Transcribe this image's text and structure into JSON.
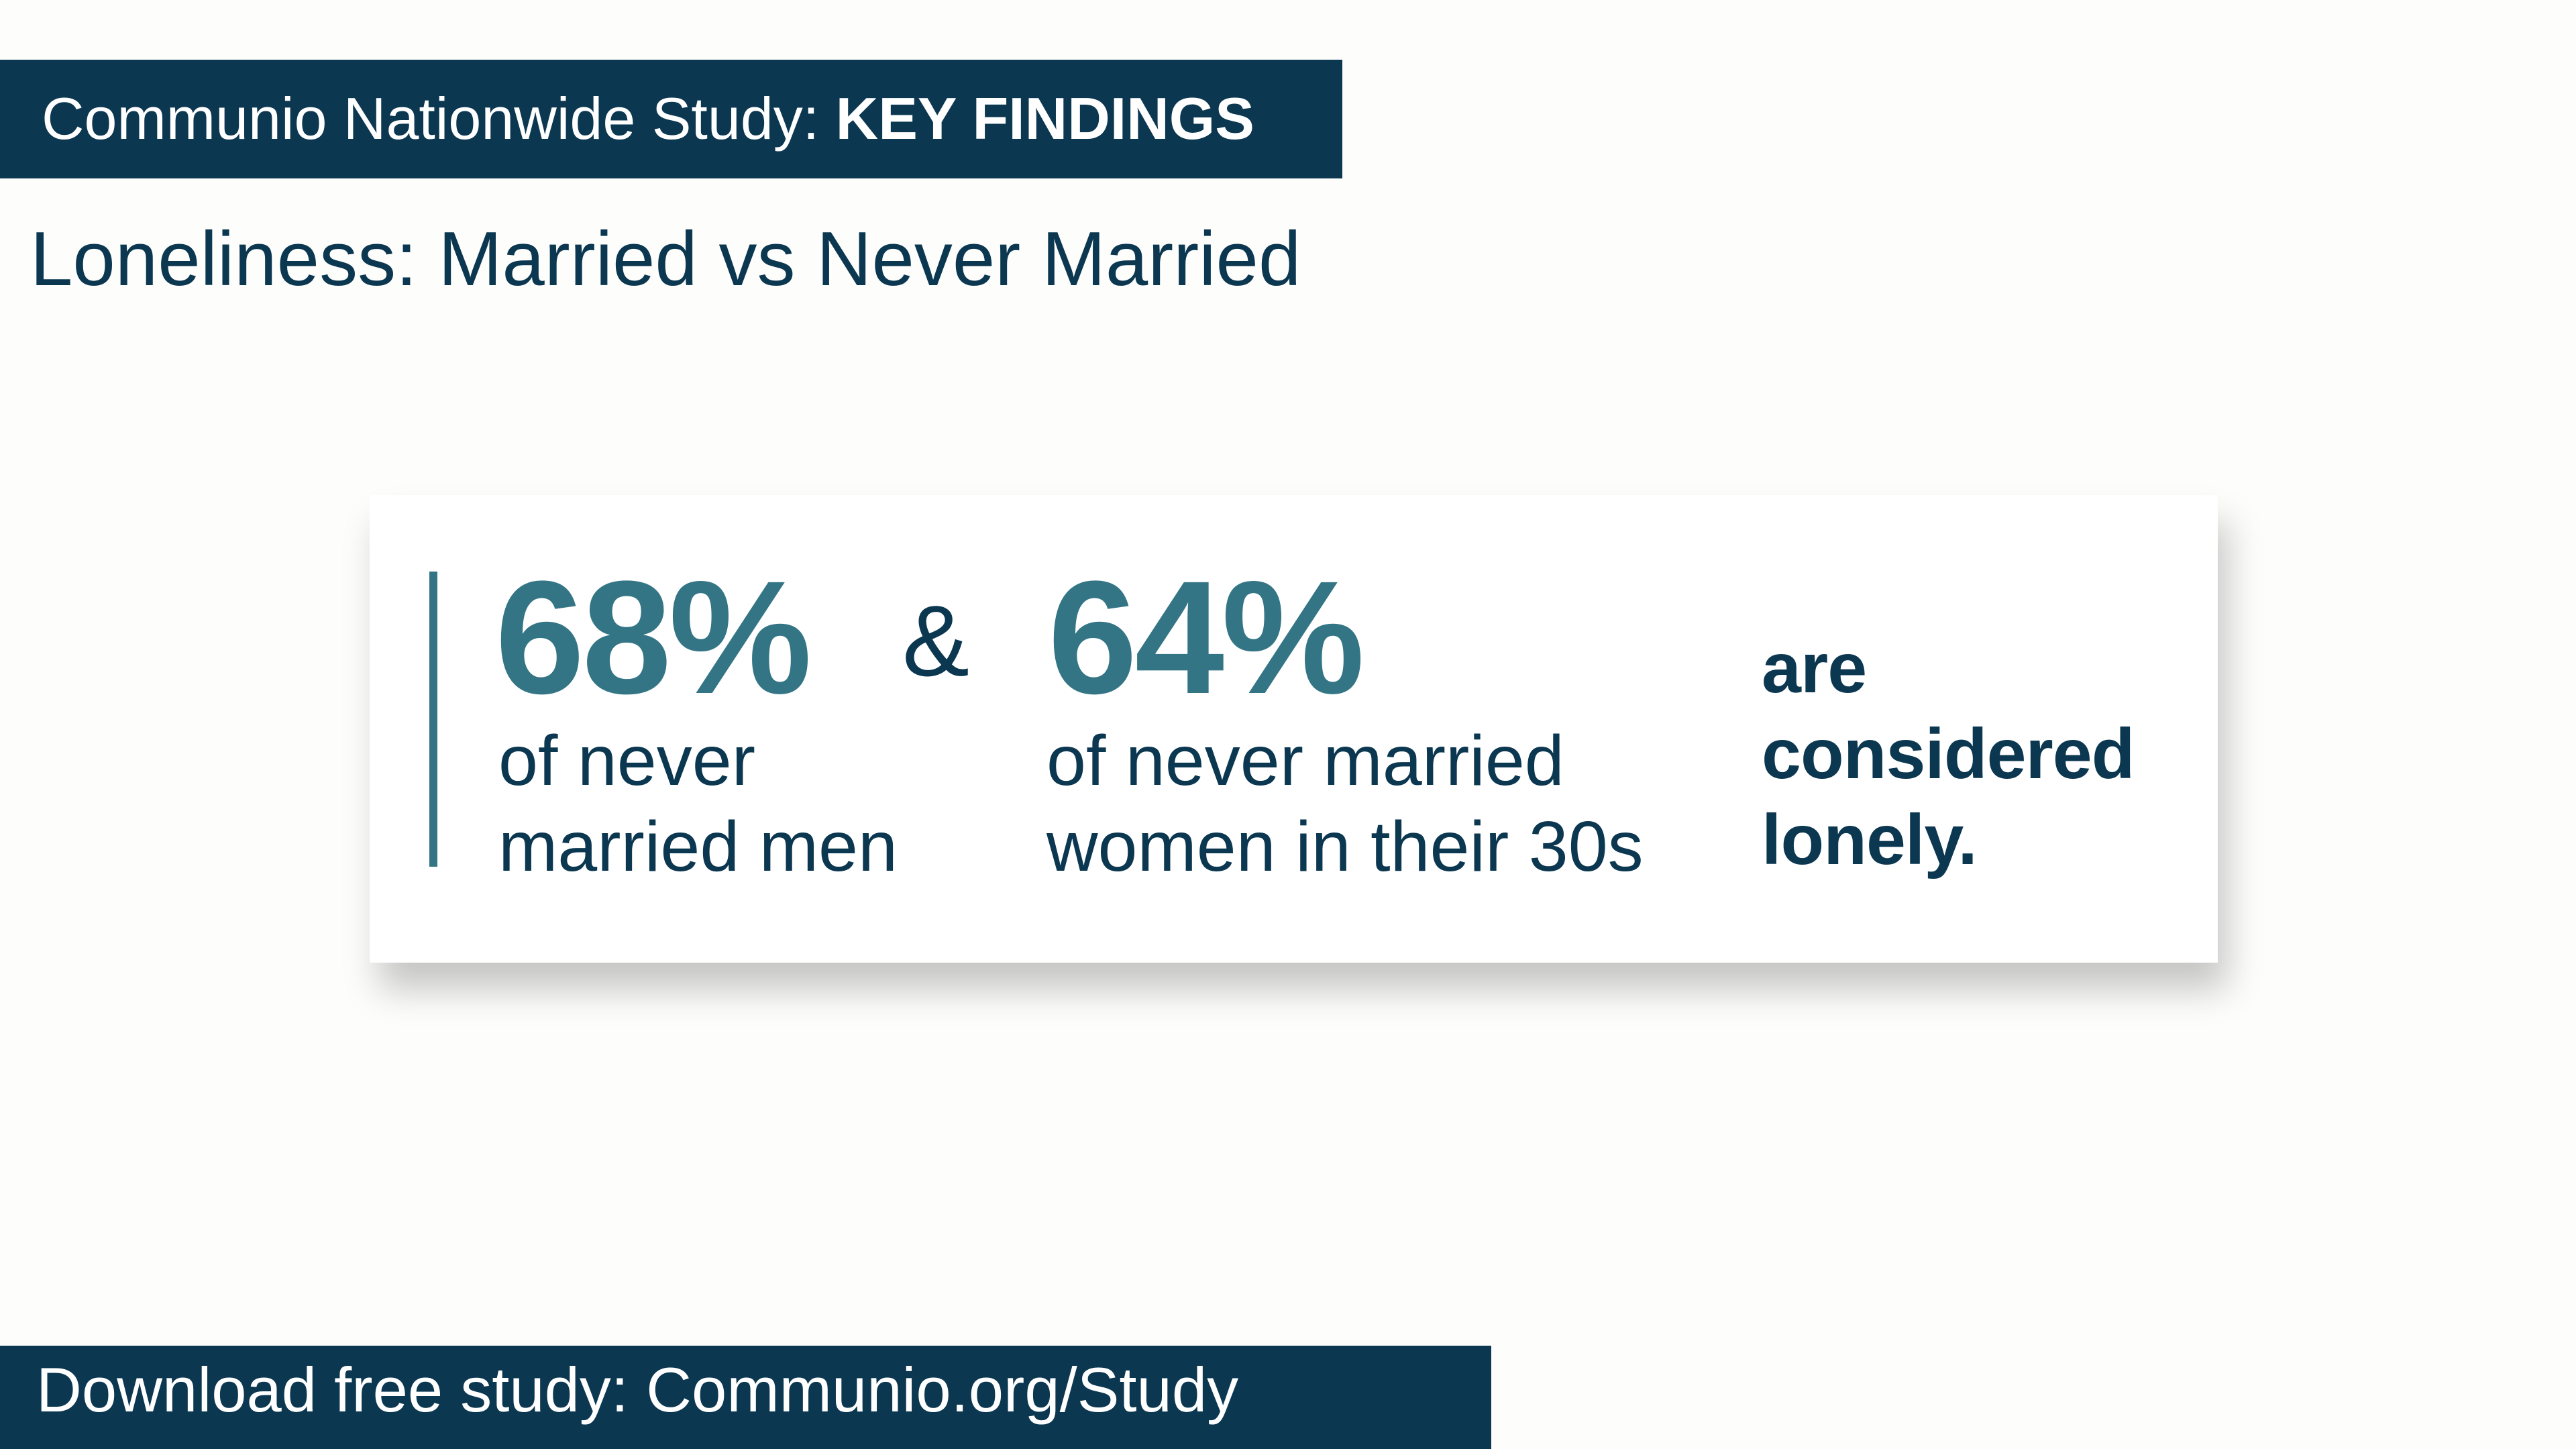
{
  "header": {
    "study_label": "Communio Nationwide Study:",
    "emphasis": "KEY FINDINGS"
  },
  "subtitle": "Loneliness: Married vs Never Married",
  "card": {
    "stat1": {
      "value": "68%",
      "line1": "of never",
      "line2": "married men"
    },
    "connector": "&",
    "stat2": {
      "value": "64%",
      "line1": "of never married",
      "line2": "women in their 30s"
    },
    "conclusion": {
      "line1": "are",
      "line2": "considered",
      "line3": "lonely."
    }
  },
  "footer": {
    "text": "Download free study: Communio.org/Study"
  },
  "colors": {
    "navy": "#0b3750",
    "teal": "#337585",
    "background": "#fdfdfc"
  }
}
